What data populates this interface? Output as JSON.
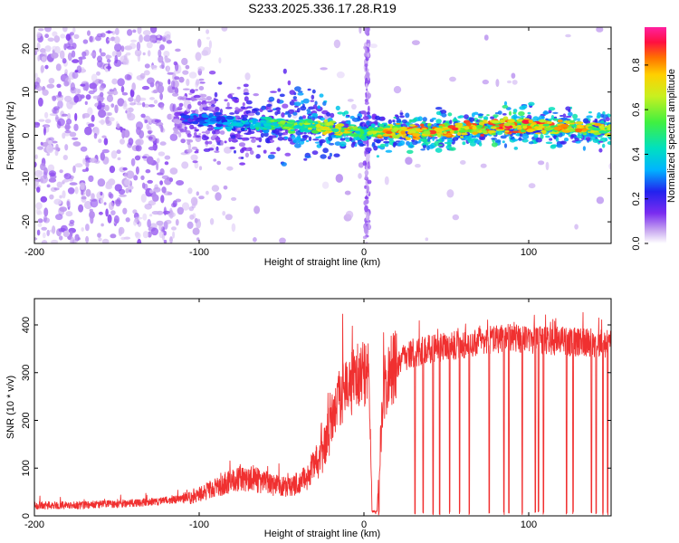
{
  "title": "S233.2025.336.17.28.R19",
  "chart_data": [
    {
      "type": "heatmap",
      "name": "spectrogram",
      "xlabel": "Height of straight line (km)",
      "ylabel": "Frequency (Hz)",
      "xlim": [
        -200,
        150
      ],
      "ylim": [
        -25,
        25
      ],
      "xticks": [
        -200,
        -100,
        0,
        100
      ],
      "xtick_labels": [
        "-200",
        "-100",
        "0",
        "100"
      ],
      "yticks": [
        -20,
        -10,
        0,
        10,
        20
      ],
      "ytick_labels": [
        "-20",
        "-10",
        "0",
        "10",
        "20"
      ],
      "colorbar": {
        "label": "Normalized spectral amplitude",
        "range": [
          0,
          0.97
        ],
        "ticks": [
          0.0,
          0.2,
          0.4,
          0.6,
          0.8
        ],
        "tick_labels": [
          "0.0",
          "0.2",
          "0.4",
          "0.6",
          "0.8"
        ],
        "colormap": [
          "#ffffff",
          "#c8a8f0",
          "#7a2cf0",
          "#2222ee",
          "#00b4ff",
          "#00e0c0",
          "#40f040",
          "#c8f020",
          "#ffd000",
          "#ff7000",
          "#ff1040",
          "#ff20a0"
        ]
      },
      "ridge": {
        "x": [
          -110,
          -90,
          -70,
          -50,
          -30,
          -10,
          0,
          10,
          30,
          50,
          70,
          90,
          110,
          130,
          150
        ],
        "frequency": [
          4,
          3.5,
          2.5,
          2.5,
          2,
          1,
          0.5,
          1,
          1,
          1,
          1.5,
          2.5,
          2,
          1.5,
          1.5
        ],
        "amplitude": [
          0.3,
          0.4,
          0.45,
          0.6,
          0.65,
          0.8,
          0.5,
          0.8,
          0.85,
          0.85,
          0.85,
          0.9,
          0.85,
          0.8,
          0.75
        ]
      },
      "vertical_feature_x": 2
    },
    {
      "type": "line",
      "name": "snr",
      "xlabel": "Height of straight line (km)",
      "ylabel": "SNR (10 * v/v)",
      "xlim": [
        -200,
        150
      ],
      "ylim": [
        0,
        455
      ],
      "xticks": [
        -200,
        -100,
        0,
        100
      ],
      "xtick_labels": [
        "-200",
        "-100",
        "0",
        "100"
      ],
      "yticks": [
        0,
        100,
        200,
        300,
        400
      ],
      "ytick_labels": [
        "0",
        "100",
        "200",
        "300",
        "400"
      ],
      "color": "#f03030",
      "x": [
        -200,
        -175,
        -150,
        -125,
        -105,
        -90,
        -75,
        -65,
        -55,
        -45,
        -35,
        -25,
        -20,
        -15,
        -10,
        -5,
        0,
        3,
        5,
        8,
        10,
        12,
        15,
        20,
        25,
        30,
        35,
        40,
        50,
        60,
        70,
        80,
        90,
        100,
        110,
        120,
        130,
        140,
        150
      ],
      "y": [
        22,
        22,
        25,
        30,
        38,
        60,
        80,
        75,
        65,
        60,
        80,
        130,
        200,
        250,
        270,
        290,
        300,
        310,
        10,
        10,
        150,
        260,
        300,
        320,
        330,
        340,
        345,
        350,
        355,
        360,
        365,
        370,
        372,
        370,
        368,
        366,
        364,
        362,
        360
      ],
      "dropouts_x": [
        5,
        7,
        9,
        31,
        36,
        42,
        46,
        52,
        58,
        64,
        76,
        85,
        88,
        96,
        104,
        106,
        109,
        123,
        127,
        138,
        141,
        145,
        148
      ]
    }
  ]
}
